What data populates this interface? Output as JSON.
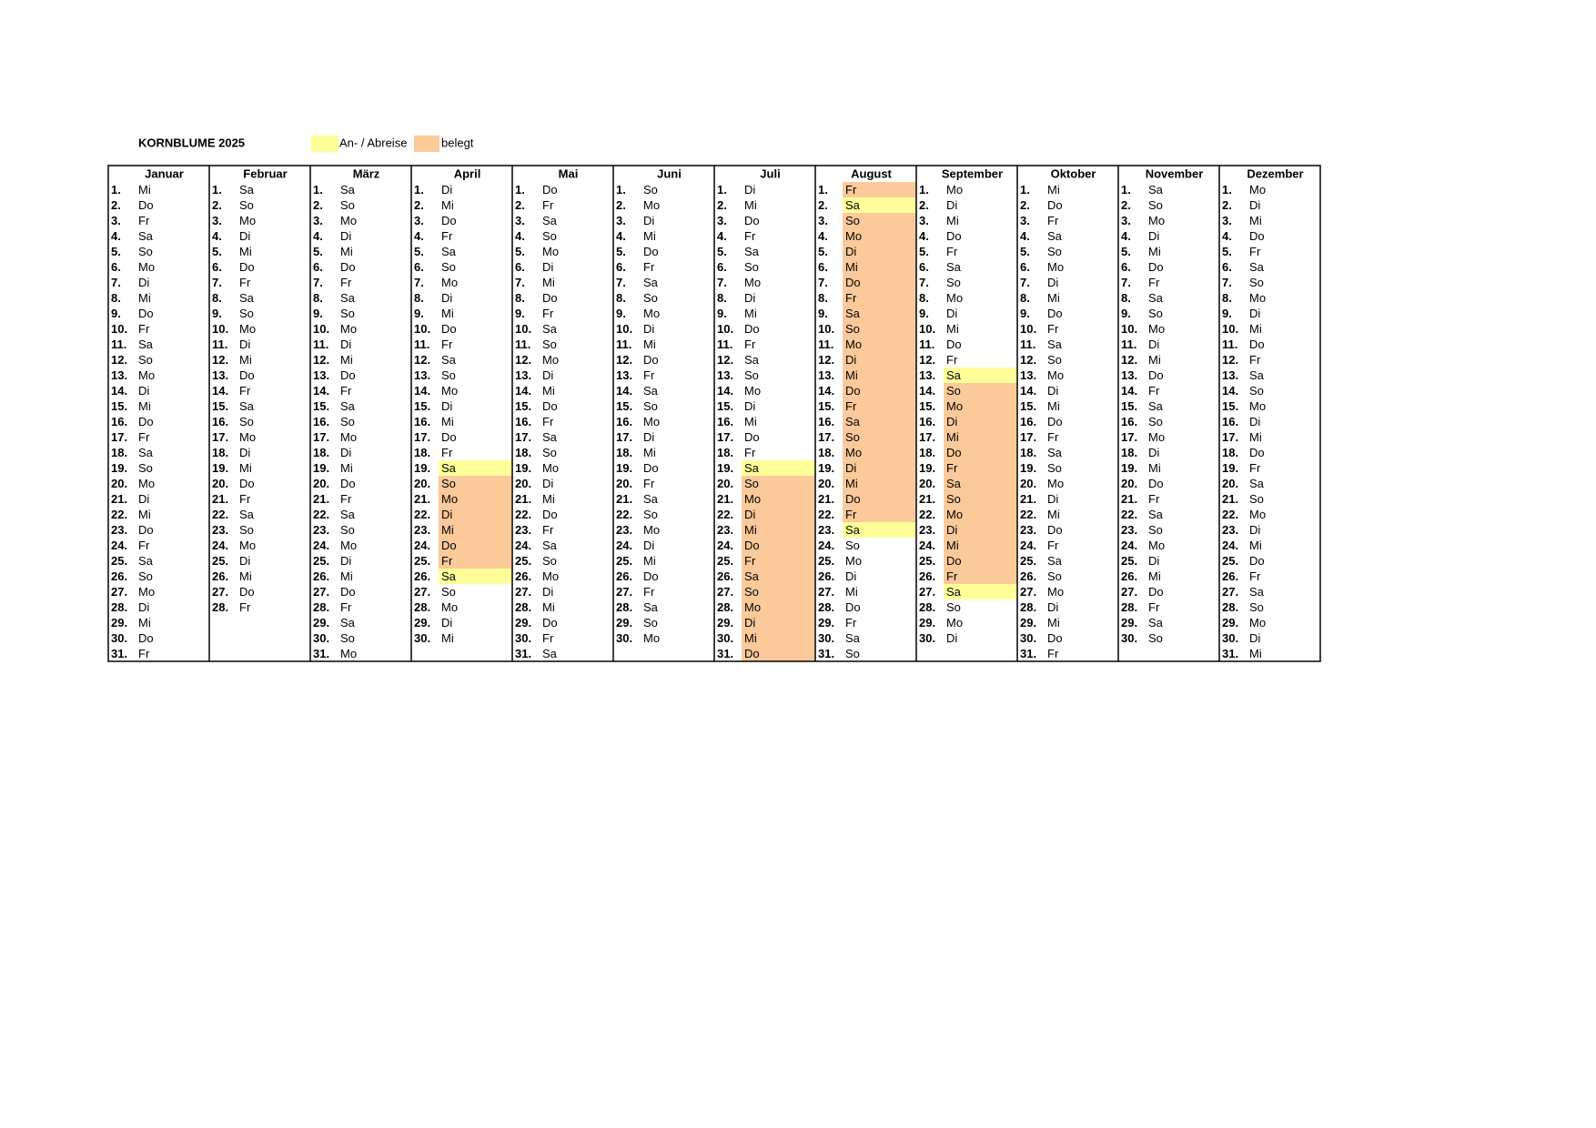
{
  "header": {
    "title": "KORNBLUME 2025"
  },
  "legend": [
    {
      "label": "An- / Abreise",
      "color": "#ffff99"
    },
    {
      "label": "belegt",
      "color": "#fcca9a"
    }
  ],
  "day_labels": [
    "1.",
    "2.",
    "3.",
    "4.",
    "5.",
    "6.",
    "7.",
    "8.",
    "9.",
    "10.",
    "11.",
    "12.",
    "13.",
    "14.",
    "15.",
    "16.",
    "17.",
    "18.",
    "19.",
    "20.",
    "21.",
    "22.",
    "23.",
    "24.",
    "25.",
    "26.",
    "27.",
    "28.",
    "29.",
    "30.",
    "31."
  ],
  "months": [
    {
      "name": "Januar",
      "weekdays": [
        "Mi",
        "Do",
        "Fr",
        "Sa",
        "So",
        "Mo",
        "Di",
        "Mi",
        "Do",
        "Fr",
        "Sa",
        "So",
        "Mo",
        "Di",
        "Mi",
        "Do",
        "Fr",
        "Sa",
        "So",
        "Mo",
        "Di",
        "Mi",
        "Do",
        "Fr",
        "Sa",
        "So",
        "Mo",
        "Di",
        "Mi",
        "Do",
        "Fr"
      ]
    },
    {
      "name": "Februar",
      "weekdays": [
        "Sa",
        "So",
        "Mo",
        "Di",
        "Mi",
        "Do",
        "Fr",
        "Sa",
        "So",
        "Mo",
        "Di",
        "Mi",
        "Do",
        "Fr",
        "Sa",
        "So",
        "Mo",
        "Di",
        "Mi",
        "Do",
        "Fr",
        "Sa",
        "So",
        "Mo",
        "Di",
        "Mi",
        "Do",
        "Fr"
      ]
    },
    {
      "name": "März",
      "weekdays": [
        "Sa",
        "So",
        "Mo",
        "Di",
        "Mi",
        "Do",
        "Fr",
        "Sa",
        "So",
        "Mo",
        "Di",
        "Mi",
        "Do",
        "Fr",
        "Sa",
        "So",
        "Mo",
        "Di",
        "Mi",
        "Do",
        "Fr",
        "Sa",
        "So",
        "Mo",
        "Di",
        "Mi",
        "Do",
        "Fr",
        "Sa",
        "So",
        "Mo"
      ]
    },
    {
      "name": "April",
      "weekdays": [
        "Di",
        "Mi",
        "Do",
        "Fr",
        "Sa",
        "So",
        "Mo",
        "Di",
        "Mi",
        "Do",
        "Fr",
        "Sa",
        "So",
        "Mo",
        "Di",
        "Mi",
        "Do",
        "Fr",
        "Sa",
        "So",
        "Mo",
        "Di",
        "Mi",
        "Do",
        "Fr",
        "Sa",
        "So",
        "Mo",
        "Di",
        "Mi"
      ],
      "arrival": [
        19,
        26
      ],
      "booked": [
        20,
        21,
        22,
        23,
        24,
        25
      ]
    },
    {
      "name": "Mai",
      "weekdays": [
        "Do",
        "Fr",
        "Sa",
        "So",
        "Mo",
        "Di",
        "Mi",
        "Do",
        "Fr",
        "Sa",
        "So",
        "Mo",
        "Di",
        "Mi",
        "Do",
        "Fr",
        "Sa",
        "So",
        "Mo",
        "Di",
        "Mi",
        "Do",
        "Fr",
        "Sa",
        "So",
        "Mo",
        "Di",
        "Mi",
        "Do",
        "Fr",
        "Sa"
      ]
    },
    {
      "name": "Juni",
      "weekdays": [
        "So",
        "Mo",
        "Di",
        "Mi",
        "Do",
        "Fr",
        "Sa",
        "So",
        "Mo",
        "Di",
        "Mi",
        "Do",
        "Fr",
        "Sa",
        "So",
        "Mo",
        "Di",
        "Mi",
        "Do",
        "Fr",
        "Sa",
        "So",
        "Mo",
        "Di",
        "Mi",
        "Do",
        "Fr",
        "Sa",
        "So",
        "Mo"
      ]
    },
    {
      "name": "Juli",
      "weekdays": [
        "Di",
        "Mi",
        "Do",
        "Fr",
        "Sa",
        "So",
        "Mo",
        "Di",
        "Mi",
        "Do",
        "Fr",
        "Sa",
        "So",
        "Mo",
        "Di",
        "Mi",
        "Do",
        "Fr",
        "Sa",
        "So",
        "Mo",
        "Di",
        "Mi",
        "Do",
        "Fr",
        "Sa",
        "So",
        "Mo",
        "Di",
        "Mi",
        "Do"
      ],
      "arrival": [
        19
      ],
      "booked": [
        20,
        21,
        22,
        23,
        24,
        25,
        26,
        27,
        28,
        29,
        30,
        31
      ]
    },
    {
      "name": "August",
      "weekdays": [
        "Fr",
        "Sa",
        "So",
        "Mo",
        "Di",
        "Mi",
        "Do",
        "Fr",
        "Sa",
        "So",
        "Mo",
        "Di",
        "Mi",
        "Do",
        "Fr",
        "Sa",
        "So",
        "Mo",
        "Di",
        "Mi",
        "Do",
        "Fr",
        "Sa",
        "So",
        "Mo",
        "Di",
        "Mi",
        "Do",
        "Fr",
        "Sa",
        "So"
      ],
      "arrival": [
        2,
        23
      ],
      "booked": [
        1,
        3,
        4,
        5,
        6,
        7,
        8,
        9,
        10,
        11,
        12,
        13,
        14,
        15,
        16,
        17,
        18,
        19,
        20,
        21,
        22
      ]
    },
    {
      "name": "September",
      "weekdays": [
        "Mo",
        "Di",
        "Mi",
        "Do",
        "Fr",
        "Sa",
        "So",
        "Mo",
        "Di",
        "Mi",
        "Do",
        "Fr",
        "Sa",
        "So",
        "Mo",
        "Di",
        "Mi",
        "Do",
        "Fr",
        "Sa",
        "So",
        "Mo",
        "Di",
        "Mi",
        "Do",
        "Fr",
        "Sa",
        "So",
        "Mo",
        "Di"
      ],
      "arrival": [
        13,
        27
      ],
      "booked": [
        14,
        15,
        16,
        17,
        18,
        19,
        20,
        21,
        22,
        23,
        24,
        25,
        26
      ]
    },
    {
      "name": "Oktober",
      "weekdays": [
        "Mi",
        "Do",
        "Fr",
        "Sa",
        "So",
        "Mo",
        "Di",
        "Mi",
        "Do",
        "Fr",
        "Sa",
        "So",
        "Mo",
        "Di",
        "Mi",
        "Do",
        "Fr",
        "Sa",
        "So",
        "Mo",
        "Di",
        "Mi",
        "Do",
        "Fr",
        "Sa",
        "So",
        "Mo",
        "Di",
        "Mi",
        "Do",
        "Fr"
      ]
    },
    {
      "name": "November",
      "weekdays": [
        "Sa",
        "So",
        "Mo",
        "Di",
        "Mi",
        "Do",
        "Fr",
        "Sa",
        "So",
        "Mo",
        "Di",
        "Mi",
        "Do",
        "Fr",
        "Sa",
        "So",
        "Mo",
        "Di",
        "Mi",
        "Do",
        "Fr",
        "Sa",
        "So",
        "Mo",
        "Di",
        "Mi",
        "Do",
        "Fr",
        "Sa",
        "So"
      ]
    },
    {
      "name": "Dezember",
      "weekdays": [
        "Mo",
        "Di",
        "Mi",
        "Do",
        "Fr",
        "Sa",
        "So",
        "Mo",
        "Di",
        "Mi",
        "Do",
        "Fr",
        "Sa",
        "So",
        "Mo",
        "Di",
        "Mi",
        "Do",
        "Fr",
        "Sa",
        "So",
        "Mo",
        "Di",
        "Mi",
        "Do",
        "Fr",
        "Sa",
        "So",
        "Mo",
        "Di",
        "Mi"
      ]
    }
  ]
}
